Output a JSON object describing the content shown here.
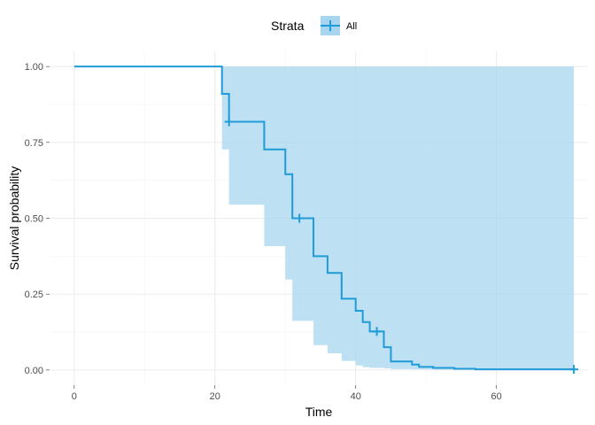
{
  "chart_data": {
    "type": "line",
    "step": true,
    "xlabel": "Time",
    "ylabel": "Survival probability",
    "xlim": [
      -3.5,
      73
    ],
    "ylim": [
      -0.05,
      1.05
    ],
    "x_ticks": [
      0,
      20,
      40,
      60
    ],
    "x_tick_labels": [
      "0",
      "20",
      "40",
      "60"
    ],
    "y_ticks": [
      0,
      0.25,
      0.5,
      0.75,
      1.0
    ],
    "y_tick_labels": [
      "0.00",
      "0.25",
      "0.50",
      "0.75",
      "1.00"
    ],
    "grid": true,
    "legend_position": "top",
    "legend": {
      "title": "Strata",
      "entries": [
        "All"
      ]
    },
    "series": [
      {
        "name": "All",
        "color": "#1f9bd7",
        "fill_color": "#a7d5ef",
        "survival": [
          [
            0,
            1.0
          ],
          [
            21,
            0.91
          ],
          [
            22,
            0.818
          ],
          [
            27,
            0.727
          ],
          [
            30,
            0.645
          ],
          [
            31,
            0.5
          ],
          [
            34,
            0.375
          ],
          [
            36,
            0.32
          ],
          [
            38,
            0.235
          ],
          [
            40,
            0.195
          ],
          [
            41,
            0.158
          ],
          [
            42,
            0.127
          ],
          [
            44,
            0.075
          ],
          [
            45,
            0.028
          ],
          [
            48,
            0.018
          ],
          [
            49,
            0.01
          ],
          [
            51,
            0.007
          ],
          [
            54,
            0.004
          ],
          [
            57,
            0.002
          ],
          [
            71,
            0.002
          ]
        ],
        "ci_lower": [
          [
            0,
            1.0
          ],
          [
            21,
            0.727
          ],
          [
            22,
            0.545
          ],
          [
            27,
            0.408
          ],
          [
            30,
            0.298
          ],
          [
            31,
            0.162
          ],
          [
            34,
            0.082
          ],
          [
            36,
            0.055
          ],
          [
            38,
            0.03
          ],
          [
            40,
            0.015
          ],
          [
            41,
            0.009
          ],
          [
            42,
            0.007
          ],
          [
            44,
            0.005
          ],
          [
            45,
            0.003
          ],
          [
            48,
            0.002
          ],
          [
            51,
            0.001
          ],
          [
            71,
            0.001
          ]
        ],
        "ci_upper": [
          [
            0,
            1.0
          ],
          [
            71,
            1.0
          ]
        ],
        "censor_marks": [
          [
            22,
            0.818
          ],
          [
            32,
            0.5
          ],
          [
            43,
            0.127
          ],
          [
            71,
            0.002
          ]
        ]
      }
    ]
  }
}
